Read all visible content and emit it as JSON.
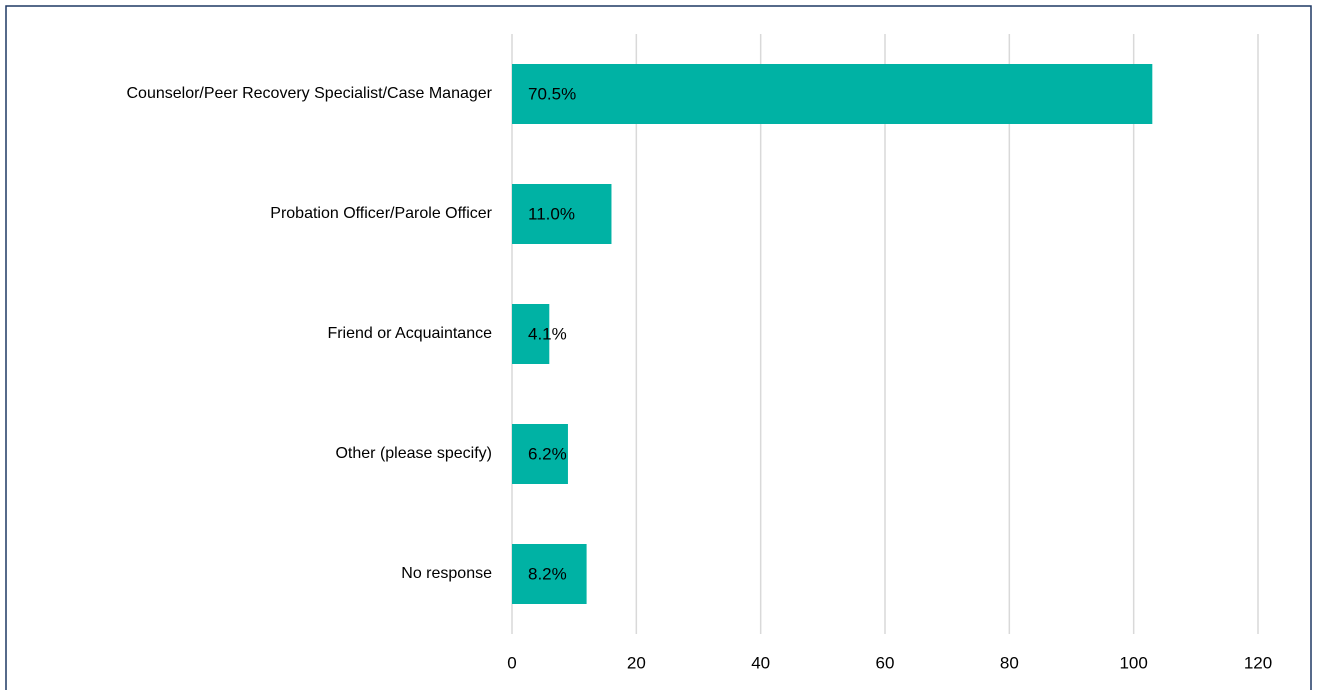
{
  "chart_data": {
    "type": "hbar",
    "categories": [
      "Counselor/Peer Recovery Specialist/Case Manager",
      "Probation Officer/Parole Officer",
      "Friend or Acquaintance",
      "Other (please specify)",
      "No response"
    ],
    "values": [
      103,
      16,
      6,
      9,
      12
    ],
    "value_labels": [
      "70.5%",
      "11.0%",
      "4.1%",
      "6.2%",
      "8.2%"
    ],
    "color": "#00b2a4",
    "xlim": [
      0,
      120
    ],
    "xticks": [
      0,
      20,
      40,
      60,
      80,
      100,
      120
    ],
    "grid": true
  }
}
